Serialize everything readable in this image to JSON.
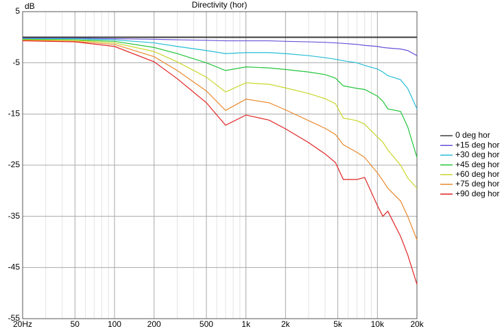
{
  "chart_data": {
    "type": "line",
    "title": "Directivity (hor)",
    "y_label": "dB",
    "log_x": true,
    "grid": true,
    "legend": "right",
    "xlim": [
      20,
      20000
    ],
    "ylim": [
      -55,
      5
    ],
    "xticks": [
      {
        "value": 20,
        "label": "20Hz"
      },
      50,
      100,
      200,
      500,
      {
        "value": 1000,
        "label": "1k"
      },
      {
        "value": 2000,
        "label": "2k"
      },
      {
        "value": 5000,
        "label": "5k"
      },
      {
        "value": 10000,
        "label": "10k"
      },
      {
        "value": 20000,
        "label": "20k"
      }
    ],
    "x_minor_ticks": [
      30,
      40,
      60,
      70,
      80,
      90,
      300,
      400,
      600,
      700,
      800,
      900,
      3000,
      4000,
      6000,
      7000,
      8000,
      9000
    ],
    "yticks": [
      5,
      -5,
      -15,
      -25,
      -35,
      -45,
      -55
    ],
    "x": [
      20,
      50,
      100,
      200,
      300,
      500,
      700,
      1000,
      1500,
      2000,
      3000,
      4000,
      4800,
      5500,
      7000,
      8000,
      10000,
      11000,
      12000,
      15000,
      17000,
      20000
    ],
    "series": [
      {
        "name": "0 deg hor",
        "color": "#3a3a3a",
        "values": [
          0,
          0,
          0,
          0,
          0,
          0,
          0,
          0,
          0,
          0,
          0,
          0,
          0,
          0,
          0,
          0,
          0,
          0,
          0,
          0,
          0,
          0
        ]
      },
      {
        "name": "+15 deg hor",
        "color": "#6a4fd8",
        "values": [
          -0.2,
          -0.2,
          -0.3,
          -0.4,
          -0.5,
          -0.6,
          -0.7,
          -0.7,
          -0.7,
          -0.8,
          -0.9,
          -1,
          -1.1,
          -1.2,
          -1.4,
          -1.6,
          -1.8,
          -2,
          -2.1,
          -2.3,
          -2.6,
          -3.6
        ]
      },
      {
        "name": "+30 deg hor",
        "color": "#25bcd6",
        "values": [
          -0.3,
          -0.3,
          -0.5,
          -1.1,
          -1.8,
          -2.6,
          -3.2,
          -3,
          -3,
          -3.2,
          -3.6,
          -4,
          -4.3,
          -4.6,
          -5,
          -5.5,
          -6.2,
          -6.8,
          -7.5,
          -8.3,
          -10,
          -14
        ]
      },
      {
        "name": "+45 deg hor",
        "color": "#22c43a",
        "values": [
          -0.4,
          -0.5,
          -0.8,
          -2,
          -3.2,
          -5,
          -6.5,
          -5.8,
          -6,
          -6.3,
          -6.8,
          -7.3,
          -8,
          -9.5,
          -10,
          -10.2,
          -11.5,
          -12.5,
          -14,
          -14.5,
          -17.5,
          -23.5
        ]
      },
      {
        "name": "+60 deg hor",
        "color": "#c8d62a",
        "values": [
          -0.5,
          -0.6,
          -1.1,
          -2.8,
          -4.8,
          -7.8,
          -10.7,
          -8.9,
          -9.2,
          -9.9,
          -11,
          -12,
          -13,
          -15.8,
          -16.3,
          -17,
          -19.5,
          -20.5,
          -22,
          -25,
          -27.5,
          -29.5
        ]
      },
      {
        "name": "+75 deg hor",
        "color": "#e8882c",
        "values": [
          -0.6,
          -0.8,
          -1.4,
          -3.8,
          -6.5,
          -10.5,
          -14.3,
          -12.1,
          -12.8,
          -14.2,
          -16.3,
          -17.8,
          -19,
          -21,
          -22.5,
          -23.5,
          -26.5,
          -28,
          -29.5,
          -32,
          -35,
          -39.6
        ]
      },
      {
        "name": "+90 deg hor",
        "color": "#e02222",
        "values": [
          -0.7,
          -0.9,
          -1.8,
          -4.8,
          -8.1,
          -12.8,
          -17.2,
          -15.2,
          -16.2,
          -17.9,
          -20.6,
          -22.8,
          -24.5,
          -27.8,
          -27.8,
          -27.4,
          -32.9,
          -35,
          -34,
          -38.9,
          -42.5,
          -48.3
        ]
      }
    ]
  }
}
